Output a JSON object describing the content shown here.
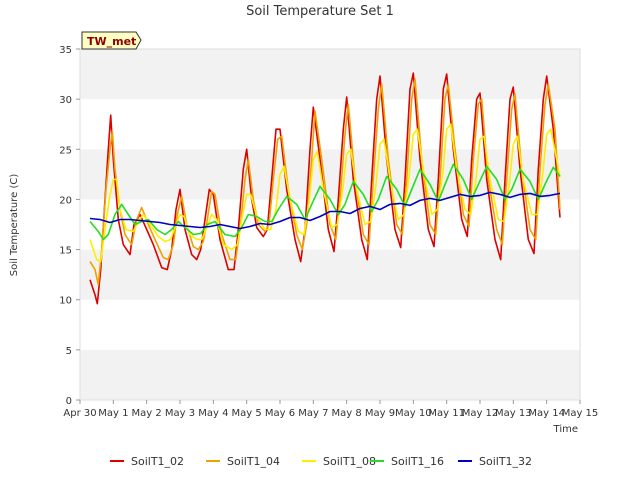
{
  "chart_data": {
    "type": "line",
    "title": "Soil Temperature Set 1",
    "xlabel": "Time",
    "ylabel": "Soil Temperature (C)",
    "badge": "TW_met",
    "x_unit": "days",
    "xlim": [
      0,
      15
    ],
    "ylim": [
      0,
      35
    ],
    "x_ticks": [
      {
        "v": 0,
        "label": "Apr 30"
      },
      {
        "v": 1,
        "label": "May 1"
      },
      {
        "v": 2,
        "label": "May 2"
      },
      {
        "v": 3,
        "label": "May 3"
      },
      {
        "v": 4,
        "label": "May 4"
      },
      {
        "v": 5,
        "label": "May 5"
      },
      {
        "v": 6,
        "label": "May 6"
      },
      {
        "v": 7,
        "label": "May 7"
      },
      {
        "v": 8,
        "label": "May 8"
      },
      {
        "v": 9,
        "label": "May 9"
      },
      {
        "v": 10,
        "label": "May 10"
      },
      {
        "v": 11,
        "label": "May 11"
      },
      {
        "v": 12,
        "label": "May 12"
      },
      {
        "v": 13,
        "label": "May 13"
      },
      {
        "v": 14,
        "label": "May 14"
      },
      {
        "v": 15,
        "label": "May 15"
      }
    ],
    "y_ticks": [
      0,
      5,
      10,
      15,
      20,
      25,
      30,
      35
    ],
    "grid": "horizontal bands",
    "legend_position": "bottom",
    "series": [
      {
        "name": "SoilT1_02",
        "color": "#dd0000",
        "x": [
          0.3,
          0.45,
          0.52,
          0.62,
          0.75,
          0.85,
          0.92,
          1.0,
          1.15,
          1.3,
          1.5,
          1.62,
          1.8,
          2.0,
          2.2,
          2.45,
          2.62,
          2.75,
          2.88,
          3.0,
          3.15,
          3.35,
          3.5,
          3.62,
          3.75,
          3.88,
          4.0,
          4.2,
          4.45,
          4.62,
          4.75,
          4.9,
          5.0,
          5.15,
          5.3,
          5.5,
          5.62,
          5.75,
          5.88,
          6.0,
          6.2,
          6.45,
          6.62,
          6.75,
          6.9,
          7.0,
          7.2,
          7.45,
          7.62,
          7.75,
          7.9,
          8.0,
          8.2,
          8.45,
          8.62,
          8.75,
          8.9,
          9.0,
          9.2,
          9.45,
          9.62,
          9.75,
          9.9,
          10.0,
          10.2,
          10.45,
          10.62,
          10.75,
          10.9,
          11.0,
          11.2,
          11.45,
          11.62,
          11.75,
          11.9,
          12.0,
          12.2,
          12.45,
          12.62,
          12.75,
          12.9,
          13.0,
          13.2,
          13.45,
          13.62,
          13.75,
          13.9,
          14.0,
          14.2,
          14.4
        ],
        "y": [
          12,
          10.5,
          9.6,
          13,
          20,
          25,
          28.4,
          24,
          18,
          15.5,
          14.5,
          17.5,
          18.5,
          17,
          15.5,
          13.2,
          13,
          15,
          19,
          21,
          17,
          14.5,
          14,
          15,
          18,
          21,
          20.5,
          16,
          13,
          13,
          17,
          23,
          25,
          20,
          17.2,
          16.3,
          17,
          22,
          27,
          27,
          21,
          16,
          13.8,
          17,
          25,
          29.2,
          24,
          17,
          14.8,
          20,
          27,
          30.2,
          22,
          16,
          14,
          22,
          30,
          32.3,
          24,
          17,
          15.2,
          22,
          31,
          32.6,
          24,
          17,
          15.3,
          22,
          31,
          32.5,
          25,
          18,
          16.3,
          24,
          30,
          30.6,
          22,
          16,
          14,
          22,
          30,
          31.2,
          23,
          16,
          14.6,
          23,
          30,
          32.3,
          27,
          18.2
        ]
      },
      {
        "name": "SoilT1_04",
        "color": "#f0a000",
        "x": [
          0.3,
          0.45,
          0.55,
          0.65,
          0.78,
          0.9,
          0.97,
          1.05,
          1.2,
          1.35,
          1.55,
          1.7,
          1.85,
          2.05,
          2.25,
          2.5,
          2.65,
          2.8,
          2.92,
          3.05,
          3.2,
          3.4,
          3.55,
          3.7,
          3.82,
          3.95,
          4.05,
          4.25,
          4.5,
          4.67,
          4.8,
          4.95,
          5.05,
          5.2,
          5.35,
          5.55,
          5.67,
          5.8,
          5.93,
          6.05,
          6.25,
          6.5,
          6.67,
          6.8,
          6.95,
          7.05,
          7.25,
          7.5,
          7.67,
          7.8,
          7.95,
          8.05,
          8.25,
          8.5,
          8.67,
          8.8,
          8.95,
          9.05,
          9.25,
          9.5,
          9.67,
          9.8,
          9.95,
          10.05,
          10.25,
          10.5,
          10.67,
          10.8,
          10.95,
          11.05,
          11.25,
          11.5,
          11.67,
          11.8,
          11.95,
          12.05,
          12.25,
          12.5,
          12.67,
          12.8,
          12.95,
          13.05,
          13.25,
          13.5,
          13.67,
          13.8,
          13.95,
          14.05,
          14.25,
          14.4
        ],
        "y": [
          13.8,
          13,
          11.5,
          15,
          21,
          25,
          26.8,
          23,
          19,
          16.5,
          15.5,
          18,
          19.2,
          17.5,
          16,
          14.2,
          14,
          15.5,
          18.5,
          20.3,
          17.5,
          15.3,
          15,
          15.8,
          18,
          20.8,
          20.5,
          16.5,
          14,
          14,
          17,
          22,
          24,
          20,
          17.5,
          16.8,
          17.5,
          22,
          26,
          26.3,
          21,
          16.5,
          15,
          17.5,
          24,
          28.8,
          24,
          17.5,
          16,
          20,
          26.5,
          29.5,
          22,
          16.5,
          15.5,
          22,
          29,
          31.5,
          24,
          17.5,
          16.5,
          22,
          30,
          32,
          24,
          17.5,
          16.5,
          22,
          30,
          31.5,
          25,
          18.5,
          17.3,
          24,
          29.5,
          30,
          22,
          17,
          15.5,
          22,
          29,
          30.5,
          23,
          17,
          16,
          23,
          29.5,
          31.5,
          27,
          19
        ]
      },
      {
        "name": "SoilT1_08",
        "color": "#ffee00",
        "x": [
          0.3,
          0.5,
          0.62,
          0.75,
          0.88,
          1.0,
          1.1,
          1.2,
          1.38,
          1.6,
          1.75,
          1.9,
          2.1,
          2.35,
          2.55,
          2.72,
          2.88,
          3.0,
          3.12,
          3.3,
          3.5,
          3.65,
          3.8,
          3.95,
          4.1,
          4.3,
          4.55,
          4.72,
          4.88,
          5.0,
          5.12,
          5.3,
          5.55,
          5.72,
          5.88,
          6.0,
          6.12,
          6.3,
          6.55,
          6.72,
          6.88,
          7.0,
          7.12,
          7.3,
          7.55,
          7.72,
          7.88,
          8.0,
          8.12,
          8.3,
          8.55,
          8.72,
          8.88,
          9.0,
          9.12,
          9.3,
          9.55,
          9.72,
          9.88,
          10.0,
          10.12,
          10.3,
          10.55,
          10.72,
          10.88,
          11.0,
          11.12,
          11.3,
          11.55,
          11.72,
          11.88,
          12.0,
          12.12,
          12.3,
          12.55,
          12.72,
          12.88,
          13.0,
          13.12,
          13.3,
          13.55,
          13.72,
          13.88,
          14.0,
          14.12,
          14.3,
          14.4
        ],
        "y": [
          16,
          14,
          13.8,
          17,
          20,
          22,
          22,
          19,
          17,
          16.8,
          17.8,
          18.5,
          17.5,
          16.3,
          15.8,
          16,
          17.5,
          18.5,
          18.3,
          16.5,
          16,
          16,
          17.2,
          18.5,
          18,
          15.5,
          15,
          15.5,
          18.5,
          20.5,
          20.5,
          18.3,
          17,
          17,
          19,
          22.5,
          23.3,
          20,
          16.8,
          16.5,
          20,
          24,
          24.8,
          21,
          17.2,
          17.5,
          21,
          24.5,
          25,
          21,
          17.5,
          17.8,
          21.5,
          25.5,
          26,
          22,
          18,
          18.5,
          22.5,
          26.5,
          27,
          23,
          18.5,
          19,
          22.5,
          27,
          27.5,
          23,
          19,
          18.5,
          22,
          26,
          26.3,
          22,
          18,
          17.8,
          21.5,
          25.5,
          26.3,
          22,
          18.5,
          18.5,
          22.5,
          26.5,
          27,
          24,
          22.2
        ]
      },
      {
        "name": "SoilT1_16",
        "color": "#22dd22",
        "x": [
          0.3,
          0.55,
          0.7,
          0.85,
          1.05,
          1.25,
          1.45,
          1.65,
          1.85,
          2.05,
          2.3,
          2.55,
          2.75,
          2.95,
          3.15,
          3.4,
          3.62,
          3.82,
          4.05,
          4.35,
          4.65,
          4.85,
          5.05,
          5.3,
          5.55,
          5.75,
          5.95,
          6.2,
          6.5,
          6.75,
          6.95,
          7.2,
          7.5,
          7.75,
          7.95,
          8.2,
          8.5,
          8.75,
          8.95,
          9.2,
          9.5,
          9.75,
          9.95,
          10.2,
          10.5,
          10.75,
          10.95,
          11.2,
          11.5,
          11.75,
          11.95,
          12.2,
          12.5,
          12.75,
          12.95,
          13.2,
          13.5,
          13.75,
          13.95,
          14.2,
          14.4
        ],
        "y": [
          17.8,
          16.8,
          16,
          16.5,
          18.5,
          19.5,
          18.5,
          17.5,
          17.8,
          18,
          17,
          16.5,
          17,
          17.8,
          17.2,
          16.5,
          16.6,
          17.5,
          17.8,
          16.5,
          16.3,
          17.2,
          18.5,
          18.3,
          17.8,
          17.8,
          19,
          20.3,
          19.5,
          18,
          19.5,
          21.3,
          20,
          18.5,
          19.5,
          21.8,
          20.5,
          18.8,
          20,
          22.3,
          21,
          19.3,
          21,
          23,
          21.5,
          19.8,
          21.5,
          23.5,
          22,
          20,
          21.5,
          23.3,
          22,
          20,
          21,
          23,
          21.8,
          20,
          21.5,
          23.2,
          22.3
        ]
      },
      {
        "name": "SoilT1_32",
        "color": "#0000bb",
        "x": [
          0.3,
          0.6,
          0.9,
          1.2,
          1.5,
          1.8,
          2.1,
          2.4,
          2.7,
          3.0,
          3.3,
          3.6,
          3.9,
          4.2,
          4.5,
          4.8,
          5.1,
          5.4,
          5.7,
          6.0,
          6.3,
          6.6,
          6.9,
          7.2,
          7.5,
          7.8,
          8.1,
          8.4,
          8.7,
          9.0,
          9.3,
          9.6,
          9.9,
          10.2,
          10.5,
          10.8,
          11.1,
          11.4,
          11.7,
          12.0,
          12.3,
          12.6,
          12.9,
          13.2,
          13.5,
          13.8,
          14.1,
          14.4
        ],
        "y": [
          18.1,
          18.0,
          17.7,
          18.0,
          18.0,
          17.9,
          17.8,
          17.7,
          17.5,
          17.4,
          17.3,
          17.2,
          17.3,
          17.5,
          17.3,
          17.1,
          17.3,
          17.6,
          17.5,
          17.8,
          18.2,
          18.2,
          17.9,
          18.3,
          18.8,
          18.8,
          18.6,
          19.1,
          19.3,
          19.0,
          19.5,
          19.6,
          19.4,
          19.9,
          20.1,
          19.9,
          20.2,
          20.5,
          20.3,
          20.4,
          20.7,
          20.5,
          20.2,
          20.5,
          20.6,
          20.3,
          20.4,
          20.6
        ]
      }
    ]
  }
}
